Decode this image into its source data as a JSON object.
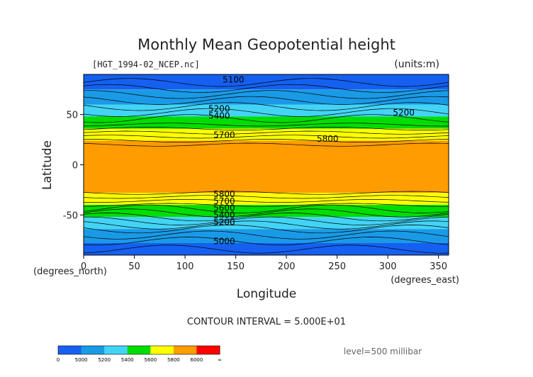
{
  "chart_data": {
    "type": "contour-map",
    "title": "Monthly Mean Geopotential height",
    "file_label": "[HGT_1994-02_NCEP.nc]",
    "units_label": "(units:m)",
    "xlabel": "Longitude",
    "ylabel": "Latitude",
    "x_unit_label": "(degrees_east)",
    "y_unit_label": "(degrees_north)",
    "xlim": [
      0,
      360
    ],
    "ylim": [
      -90,
      90
    ],
    "x_ticks": [
      0,
      50,
      100,
      150,
      200,
      250,
      300,
      350
    ],
    "y_ticks": [
      50,
      0,
      -50
    ],
    "contour_interval_text": "CONTOUR INTERVAL = 5.000E+01",
    "level_text": "level=500 millibar",
    "zonal_bands": [
      {
        "lat_top": 90,
        "lat_bottom": 75,
        "level": 5000
      },
      {
        "lat_top": 75,
        "lat_bottom": 60,
        "level": 5200
      },
      {
        "lat_top": 60,
        "lat_bottom": 48,
        "level": 5400
      },
      {
        "lat_top": 48,
        "lat_bottom": 36,
        "level": 5600
      },
      {
        "lat_top": 36,
        "lat_bottom": 24,
        "level": 5800
      },
      {
        "lat_top": 24,
        "lat_bottom": -28,
        "level": 5800
      },
      {
        "lat_top": -28,
        "lat_bottom": -40,
        "level": 5800
      },
      {
        "lat_top": -40,
        "lat_bottom": -52,
        "level": 5600
      },
      {
        "lat_top": -52,
        "lat_bottom": -64,
        "level": 5400
      },
      {
        "lat_top": -64,
        "lat_bottom": -78,
        "level": 5200
      },
      {
        "lat_top": -78,
        "lat_bottom": -90,
        "level": 5000
      }
    ],
    "contour_labels": [
      {
        "text": "5100",
        "lon": 137,
        "lat": 82
      },
      {
        "text": "5200",
        "lon": 123,
        "lat": 53
      },
      {
        "text": "5400",
        "lon": 123,
        "lat": 46
      },
      {
        "text": "5700",
        "lon": 128,
        "lat": 27
      },
      {
        "text": "5800",
        "lon": 230,
        "lat": 23
      },
      {
        "text": "5200",
        "lon": 305,
        "lat": 49
      },
      {
        "text": "5800",
        "lon": 128,
        "lat": -32
      },
      {
        "text": "5700",
        "lon": 128,
        "lat": -39
      },
      {
        "text": "5600",
        "lon": 128,
        "lat": -46
      },
      {
        "text": "5400",
        "lon": 128,
        "lat": -53
      },
      {
        "text": "5200",
        "lon": 128,
        "lat": -60
      },
      {
        "text": "5000",
        "lon": 128,
        "lat": -79
      }
    ],
    "colorbar": {
      "tick_labels": [
        "0",
        "5000",
        "5200",
        "5400",
        "5600",
        "5800",
        "6000",
        "∞"
      ],
      "colors": [
        "#1560f0",
        "#1a9ae6",
        "#43d4f5",
        "#00dd00",
        "#ffff00",
        "#ff9c00",
        "#ff0000"
      ]
    },
    "colors": {
      "level_5000": "#1560f0",
      "level_5200": "#1a9ae6",
      "level_5400": "#43d4f5",
      "level_5600": "#00dd00",
      "level_5800": "#ffff00",
      "level_6000": "#ff9c00"
    }
  }
}
